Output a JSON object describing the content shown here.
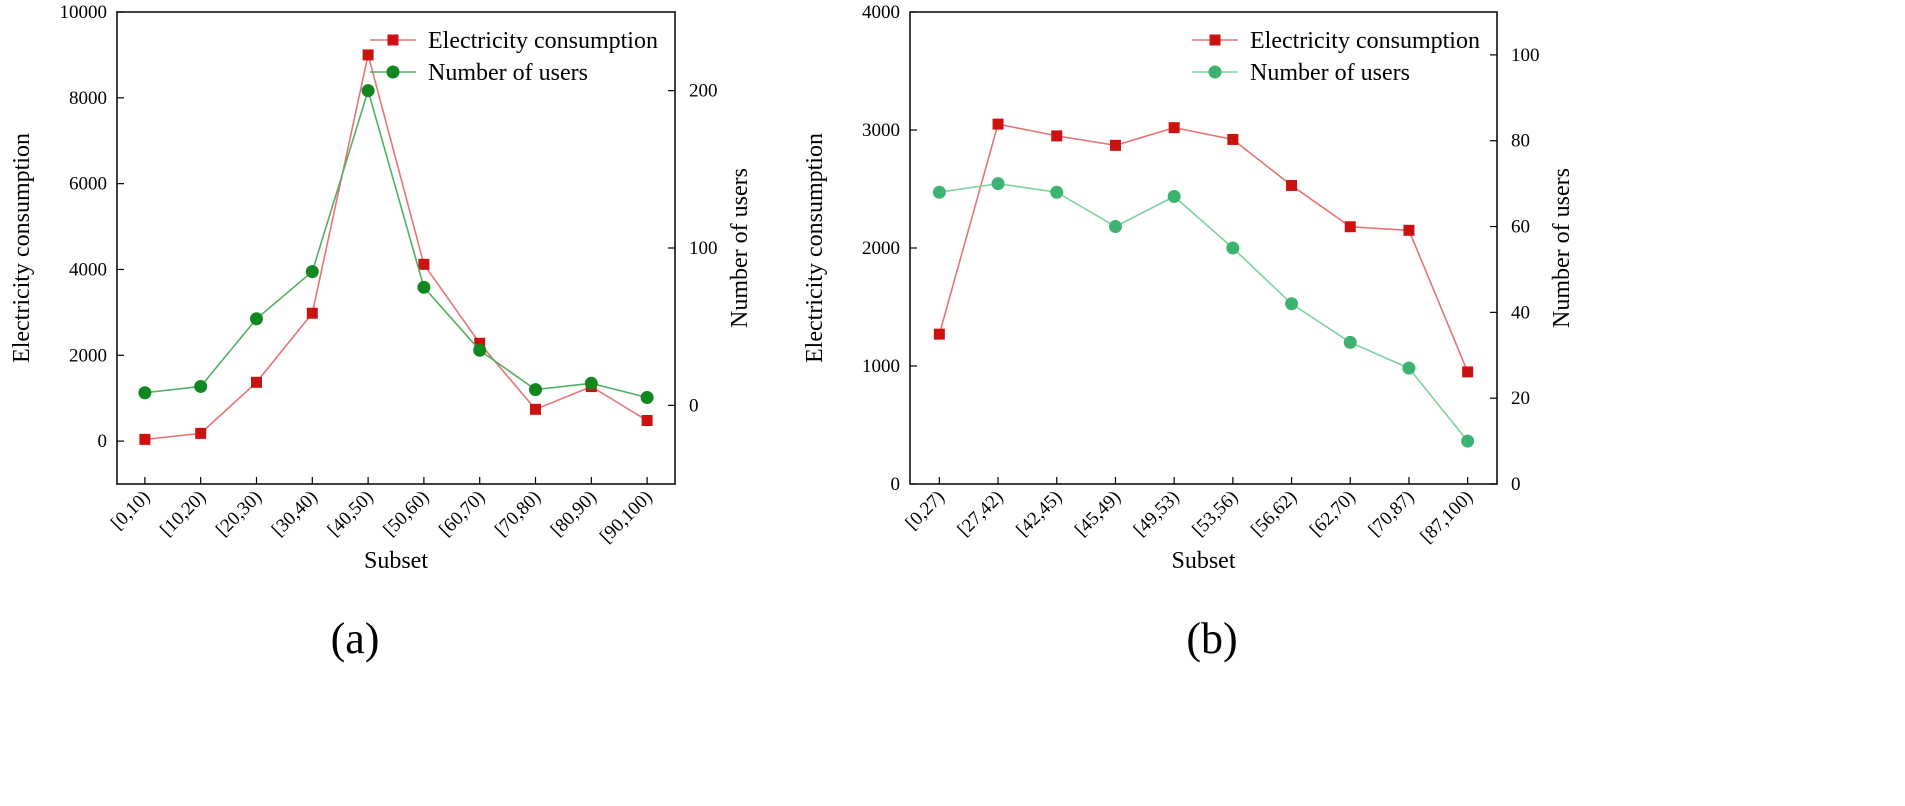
{
  "panel_labels": [
    "(a)",
    "(b)"
  ],
  "chart_data": [
    {
      "type": "line",
      "label": "(a)",
      "title": "",
      "xlabel": "Subset",
      "ylabel": "Electricity consumption",
      "y2label": "Number of users",
      "categories": [
        "[0,10)",
        "[10,20)",
        "[20,30)",
        "[30,40)",
        "[40,50)",
        "[50,60)",
        "[60,70)",
        "[70,80)",
        "[80,90)",
        "[90,100)"
      ],
      "ylim": [
        -1000,
        10000
      ],
      "yticks": [
        0,
        2000,
        4000,
        6000,
        8000,
        10000
      ],
      "y2lim": [
        -50,
        250
      ],
      "y2ticks": [
        0,
        100,
        200
      ],
      "legend_position": "top-right",
      "series": [
        {
          "name": "Electricity consumption",
          "axis": "left",
          "color": "#cc1111",
          "line_color": "#e87373",
          "marker": "square",
          "values": [
            40,
            180,
            1370,
            2980,
            9000,
            4120,
            2280,
            740,
            1270,
            480
          ]
        },
        {
          "name": "Number of users",
          "axis": "right",
          "color": "#11881f",
          "line_color": "#52b060",
          "marker": "circle",
          "values": [
            8,
            12,
            55,
            85,
            200,
            75,
            35,
            10,
            14,
            5
          ]
        }
      ]
    },
    {
      "type": "line",
      "label": "(b)",
      "title": "",
      "xlabel": "Subset",
      "ylabel": "Electricity consumption",
      "y2label": "Number of users",
      "categories": [
        "[0,27)",
        "[27,42)",
        "[42,45)",
        "[45,49)",
        "[49,53)",
        "[53,56)",
        "[56,62)",
        "[62,70)",
        "[70,87)",
        "[87,100)"
      ],
      "ylim": [
        0,
        4000
      ],
      "yticks": [
        0,
        1000,
        2000,
        3000,
        4000
      ],
      "y2lim": [
        0,
        110
      ],
      "y2ticks": [
        0,
        20,
        40,
        60,
        80,
        100
      ],
      "legend_position": "top-right",
      "series": [
        {
          "name": "Electricity consumption",
          "axis": "left",
          "color": "#cc1111",
          "line_color": "#e87373",
          "marker": "square",
          "values": [
            1270,
            3050,
            2950,
            2870,
            3020,
            2920,
            2530,
            2180,
            2150,
            950
          ]
        },
        {
          "name": "Number of users",
          "axis": "right",
          "color": "#3cb371",
          "line_color": "#7fd39d",
          "marker": "circle",
          "values": [
            68,
            70,
            68,
            60,
            67,
            55,
            42,
            33,
            27,
            10
          ]
        }
      ]
    }
  ]
}
